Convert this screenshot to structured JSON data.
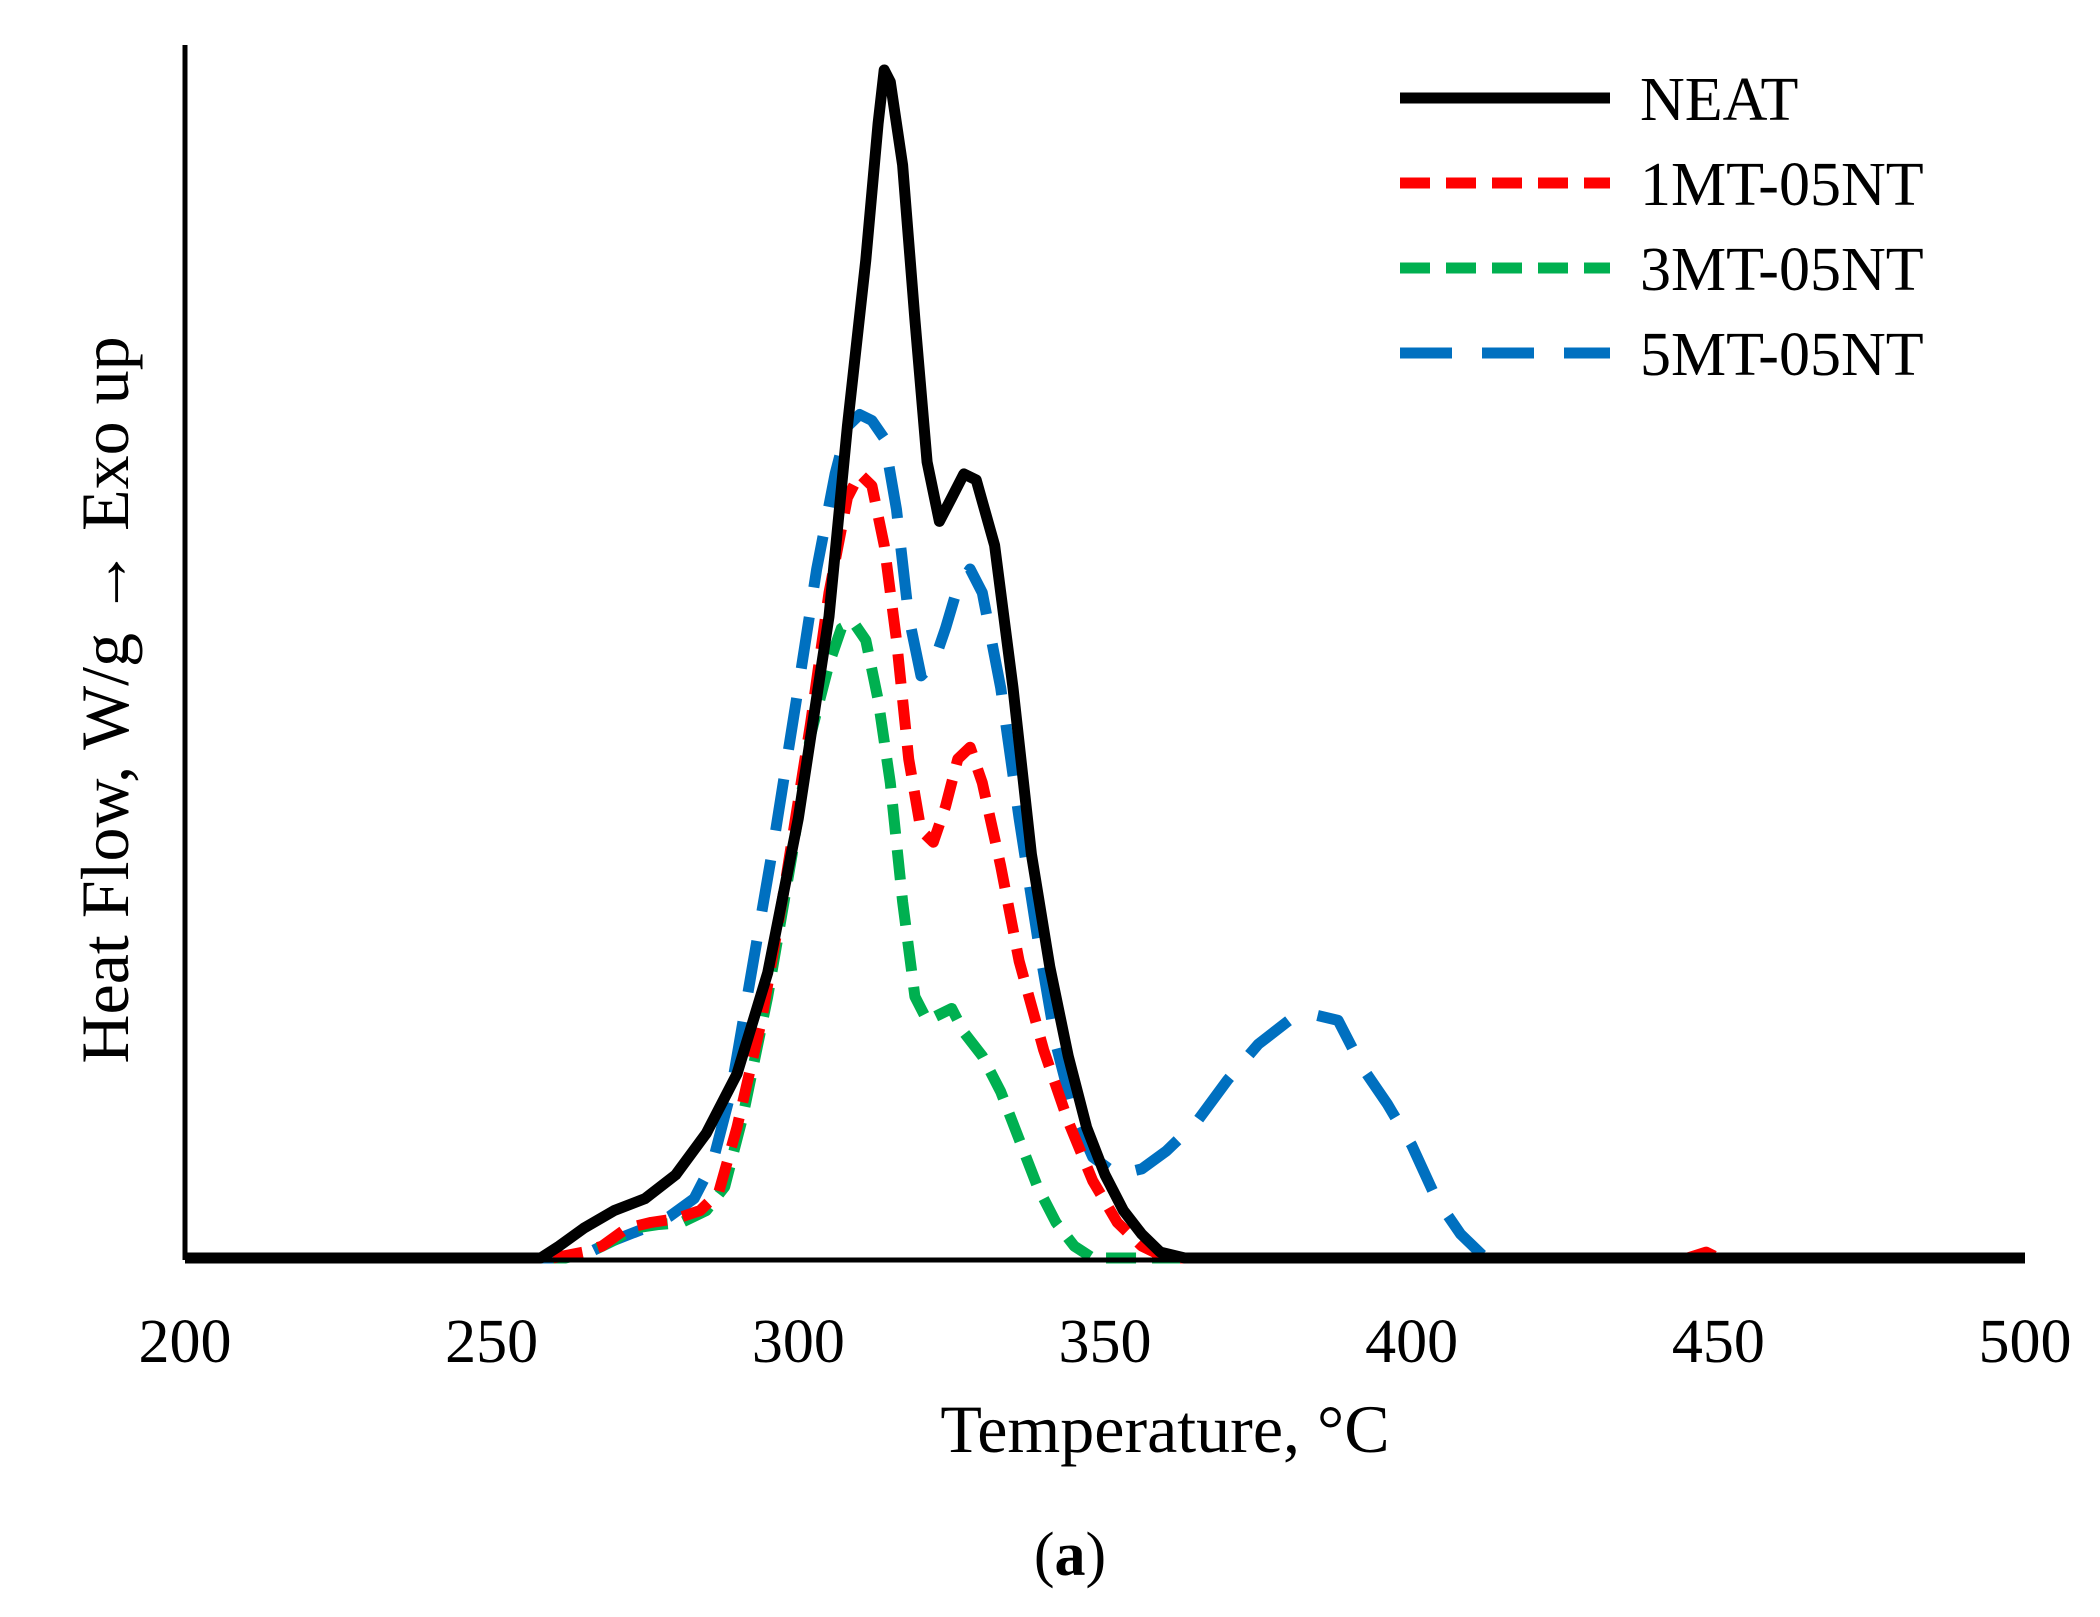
{
  "chart_data": {
    "type": "line",
    "title": "",
    "xlabel": "Temperature, °C",
    "ylabel": "Heat Flow, W/g  → Exo up",
    "caption_letter": "a",
    "xlim": [
      200,
      500
    ],
    "ylim": [
      0,
      1
    ],
    "x_ticks": [
      "200",
      "250",
      "300",
      "350",
      "400",
      "450",
      "500"
    ],
    "y_ticks": [],
    "grid": false,
    "legend_position": "top-right",
    "series": [
      {
        "name": "NEAT",
        "color": "#000000",
        "dash": "solid",
        "points": [
          [
            200,
            0
          ],
          [
            250,
            0
          ],
          [
            258,
            0
          ],
          [
            261,
            0.01
          ],
          [
            265,
            0.025
          ],
          [
            270,
            0.04
          ],
          [
            275,
            0.05
          ],
          [
            280,
            0.07
          ],
          [
            285,
            0.105
          ],
          [
            290,
            0.155
          ],
          [
            295,
            0.24
          ],
          [
            300,
            0.37
          ],
          [
            305,
            0.54
          ],
          [
            308,
            0.7
          ],
          [
            311,
            0.84
          ],
          [
            313,
            0.955
          ],
          [
            314,
            1.0
          ],
          [
            315,
            0.99
          ],
          [
            317,
            0.92
          ],
          [
            319,
            0.79
          ],
          [
            321,
            0.67
          ],
          [
            323,
            0.62
          ],
          [
            325,
            0.64
          ],
          [
            327,
            0.66
          ],
          [
            329,
            0.655
          ],
          [
            332,
            0.6
          ],
          [
            335,
            0.48
          ],
          [
            338,
            0.34
          ],
          [
            341,
            0.245
          ],
          [
            344,
            0.17
          ],
          [
            347,
            0.11
          ],
          [
            350,
            0.07
          ],
          [
            353,
            0.04
          ],
          [
            356,
            0.02
          ],
          [
            359,
            0.005
          ],
          [
            363,
            0
          ],
          [
            500,
            0
          ]
        ]
      },
      {
        "name": "1MT-05NT",
        "color": "#ff0000",
        "dash": "medium",
        "points": [
          [
            200,
            0
          ],
          [
            260,
            0
          ],
          [
            265,
            0.005
          ],
          [
            268,
            0.01
          ],
          [
            272,
            0.025
          ],
          [
            276,
            0.03
          ],
          [
            280,
            0.033
          ],
          [
            284,
            0.04
          ],
          [
            287,
            0.055
          ],
          [
            290,
            0.11
          ],
          [
            294,
            0.2
          ],
          [
            298,
            0.32
          ],
          [
            302,
            0.45
          ],
          [
            305,
            0.56
          ],
          [
            308,
            0.64
          ],
          [
            310,
            0.66
          ],
          [
            312,
            0.65
          ],
          [
            314,
            0.6
          ],
          [
            316,
            0.52
          ],
          [
            318,
            0.42
          ],
          [
            320,
            0.36
          ],
          [
            322,
            0.35
          ],
          [
            324,
            0.38
          ],
          [
            326,
            0.42
          ],
          [
            328,
            0.43
          ],
          [
            330,
            0.4
          ],
          [
            333,
            0.33
          ],
          [
            336,
            0.25
          ],
          [
            340,
            0.175
          ],
          [
            344,
            0.115
          ],
          [
            348,
            0.065
          ],
          [
            352,
            0.03
          ],
          [
            356,
            0.01
          ],
          [
            360,
            0
          ],
          [
            375,
            0
          ],
          [
            445,
            0
          ],
          [
            448,
            0.005
          ],
          [
            450,
            0
          ],
          [
            500,
            0
          ]
        ]
      },
      {
        "name": "3MT-05NT",
        "color": "#00b050",
        "dash": "medium",
        "points": [
          [
            200,
            0
          ],
          [
            262,
            0
          ],
          [
            266,
            0.005
          ],
          [
            270,
            0.015
          ],
          [
            273,
            0.025
          ],
          [
            277,
            0.028
          ],
          [
            281,
            0.03
          ],
          [
            285,
            0.04
          ],
          [
            288,
            0.06
          ],
          [
            291,
            0.12
          ],
          [
            295,
            0.22
          ],
          [
            299,
            0.34
          ],
          [
            302,
            0.44
          ],
          [
            305,
            0.5
          ],
          [
            307,
            0.53
          ],
          [
            309,
            0.535
          ],
          [
            311,
            0.52
          ],
          [
            313,
            0.47
          ],
          [
            315,
            0.4
          ],
          [
            317,
            0.3
          ],
          [
            319,
            0.22
          ],
          [
            321,
            0.2
          ],
          [
            323,
            0.205
          ],
          [
            325,
            0.21
          ],
          [
            327,
            0.19
          ],
          [
            330,
            0.17
          ],
          [
            333,
            0.14
          ],
          [
            336,
            0.1
          ],
          [
            339,
            0.06
          ],
          [
            342,
            0.03
          ],
          [
            345,
            0.01
          ],
          [
            348,
            0
          ],
          [
            500,
            0
          ]
        ]
      },
      {
        "name": "5MT-05NT",
        "color": "#0070c0",
        "dash": "long",
        "points": [
          [
            200,
            0
          ],
          [
            262,
            0
          ],
          [
            266,
            0.005
          ],
          [
            270,
            0.015
          ],
          [
            275,
            0.025
          ],
          [
            279,
            0.035
          ],
          [
            283,
            0.05
          ],
          [
            286,
            0.08
          ],
          [
            289,
            0.14
          ],
          [
            292,
            0.23
          ],
          [
            296,
            0.35
          ],
          [
            300,
            0.48
          ],
          [
            303,
            0.58
          ],
          [
            306,
            0.66
          ],
          [
            308,
            0.7
          ],
          [
            310,
            0.71
          ],
          [
            312,
            0.705
          ],
          [
            314,
            0.69
          ],
          [
            316,
            0.63
          ],
          [
            318,
            0.54
          ],
          [
            320,
            0.49
          ],
          [
            322,
            0.5
          ],
          [
            324,
            0.53
          ],
          [
            326,
            0.565
          ],
          [
            328,
            0.58
          ],
          [
            330,
            0.56
          ],
          [
            333,
            0.48
          ],
          [
            336,
            0.37
          ],
          [
            339,
            0.27
          ],
          [
            342,
            0.18
          ],
          [
            345,
            0.12
          ],
          [
            348,
            0.085
          ],
          [
            352,
            0.07
          ],
          [
            356,
            0.075
          ],
          [
            360,
            0.09
          ],
          [
            365,
            0.115
          ],
          [
            370,
            0.15
          ],
          [
            375,
            0.18
          ],
          [
            380,
            0.2
          ],
          [
            384,
            0.205
          ],
          [
            388,
            0.2
          ],
          [
            392,
            0.16
          ],
          [
            396,
            0.13
          ],
          [
            400,
            0.095
          ],
          [
            404,
            0.05
          ],
          [
            408,
            0.02
          ],
          [
            412,
            0
          ],
          [
            500,
            0
          ]
        ]
      }
    ]
  }
}
